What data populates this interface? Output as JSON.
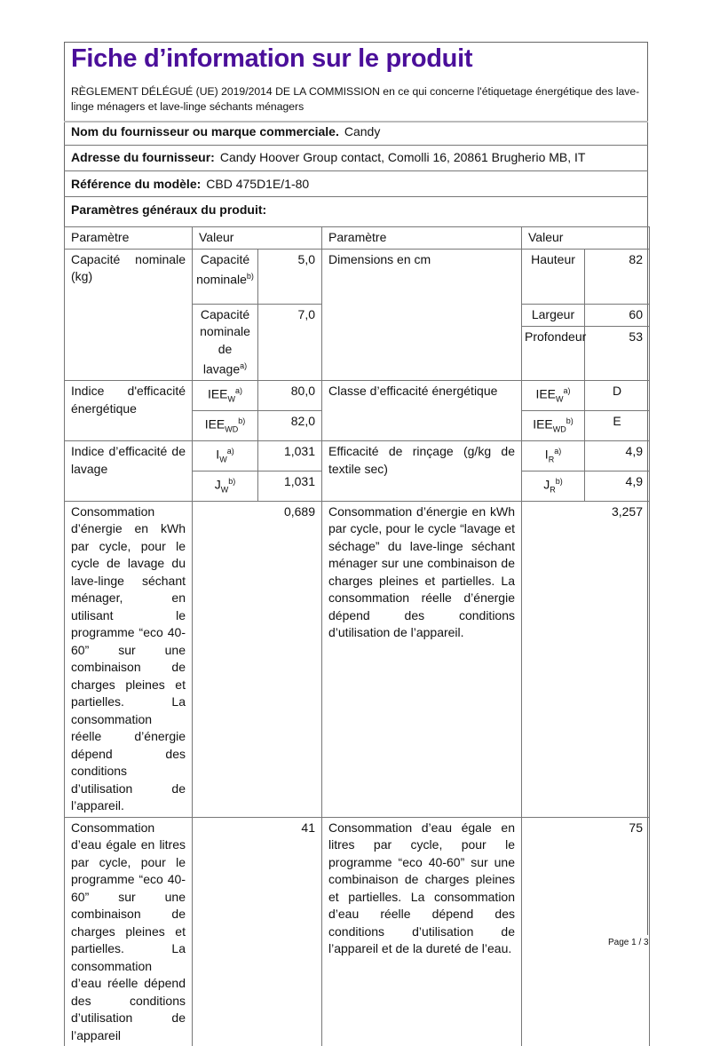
{
  "title": "Fiche d’information sur le produit",
  "regulation": "RÈGLEMENT DÉLÉGUÉ (UE) 2019/2014 DE LA COMMISSION en ce qui concerne l'étiquetage énergétique des lave-linge ménagers et lave-linge séchants ménagers",
  "supplier": {
    "label": "Nom du fournisseur ou marque commerciale.",
    "value": "Candy"
  },
  "address": {
    "label": "Adresse du fournisseur:",
    "value": "Candy Hoover Group contact, Comolli 16, 20861 Brugherio MB, IT"
  },
  "model": {
    "label": "Référence du modèle:",
    "value": "CBD 475D1E/1-80"
  },
  "general_params": "Paramètres généraux du produit:",
  "table": {
    "headers": [
      "Paramètre",
      "Valeur",
      "Paramètre",
      "Valeur"
    ],
    "capacity": {
      "label": "Capacité nominale (kg)",
      "sub1": "Capacité nominale",
      "sub1_sup": "b)",
      "val1": "5,0",
      "sub2": "Capacité nominale de lavage",
      "sub2_sup": "a)",
      "val2": "7,0"
    },
    "dimensions": {
      "label": "Dimensions en cm",
      "height_label": "Hauteur",
      "height": "82",
      "width_label": "Largeur",
      "width": "60",
      "depth_label": "Profondeur",
      "depth": "53"
    },
    "eei": {
      "label": "Indice d'efficacité énergétique",
      "w_base": "IEE",
      "w_sub": "W",
      "w_sup": "a)",
      "w_val": "80,0",
      "wd_base": "IEE",
      "wd_sub": "WD",
      "wd_sup": "b)",
      "wd_val": "82,0"
    },
    "energy_class": {
      "label": "Classe d’efficacité énergétique",
      "w_base": "IEE",
      "w_sub": "W",
      "w_sup": "a)",
      "w_val": "D",
      "wd_base": "IEE",
      "wd_sub": "WD",
      "wd_sup": "b)",
      "wd_val": "E"
    },
    "washing": {
      "label": "Indice d’efficacité de lavage",
      "w_base": "I",
      "w_sub": "W",
      "w_sup": "a)",
      "w_val": "1,031",
      "wd_base": "J",
      "wd_sub": "W",
      "wd_sup": "b)",
      "wd_val": "1,031"
    },
    "rinsing": {
      "label": "Efficacité de rinçage (g/kg de textile sec)",
      "w_base": "I",
      "w_sub": "R",
      "w_sup": "a)",
      "w_val": "4,9",
      "wd_base": "J",
      "wd_sub": "R",
      "wd_sup": "b)",
      "wd_val": "4,9"
    },
    "energy_wash": {
      "label": "Consommation d’énergie en kWh par cycle, pour le cycle de lavage du lave-linge séchant ménager, en utilisant le programme “eco 40-60” sur une combinaison de charges pleines et partielles. La consommation réelle d’énergie dépend des conditions d’utilisation de l’appareil.",
      "value": "0,689"
    },
    "energy_washdry": {
      "label": "Consommation d’énergie en kWh par cycle, pour le cycle “lavage et séchage” du lave-linge séchant ménager sur une combinaison de charges pleines et partielles. La consommation réelle d’énergie dépend des conditions d’utilisation de l’appareil.",
      "value": "3,257"
    },
    "water_wash": {
      "label": "Consommation d’eau égale en litres par cycle, pour le programme “eco 40-60” sur une combinaison de charges pleines et partielles. La consommation d’eau réelle dépend des conditions d’utilisation de l’appareil",
      "value": "41"
    },
    "water_washdry": {
      "label": "Consommation d’eau égale en litres par cycle, pour le programme “eco 40-60” sur une combinaison de charges pleines et partielles. La consommation d’eau réelle dépend des conditions d’utilisation de l’appareil et de la dureté de l’eau.",
      "value": "75"
    }
  },
  "footer": "Page 1 / 3"
}
